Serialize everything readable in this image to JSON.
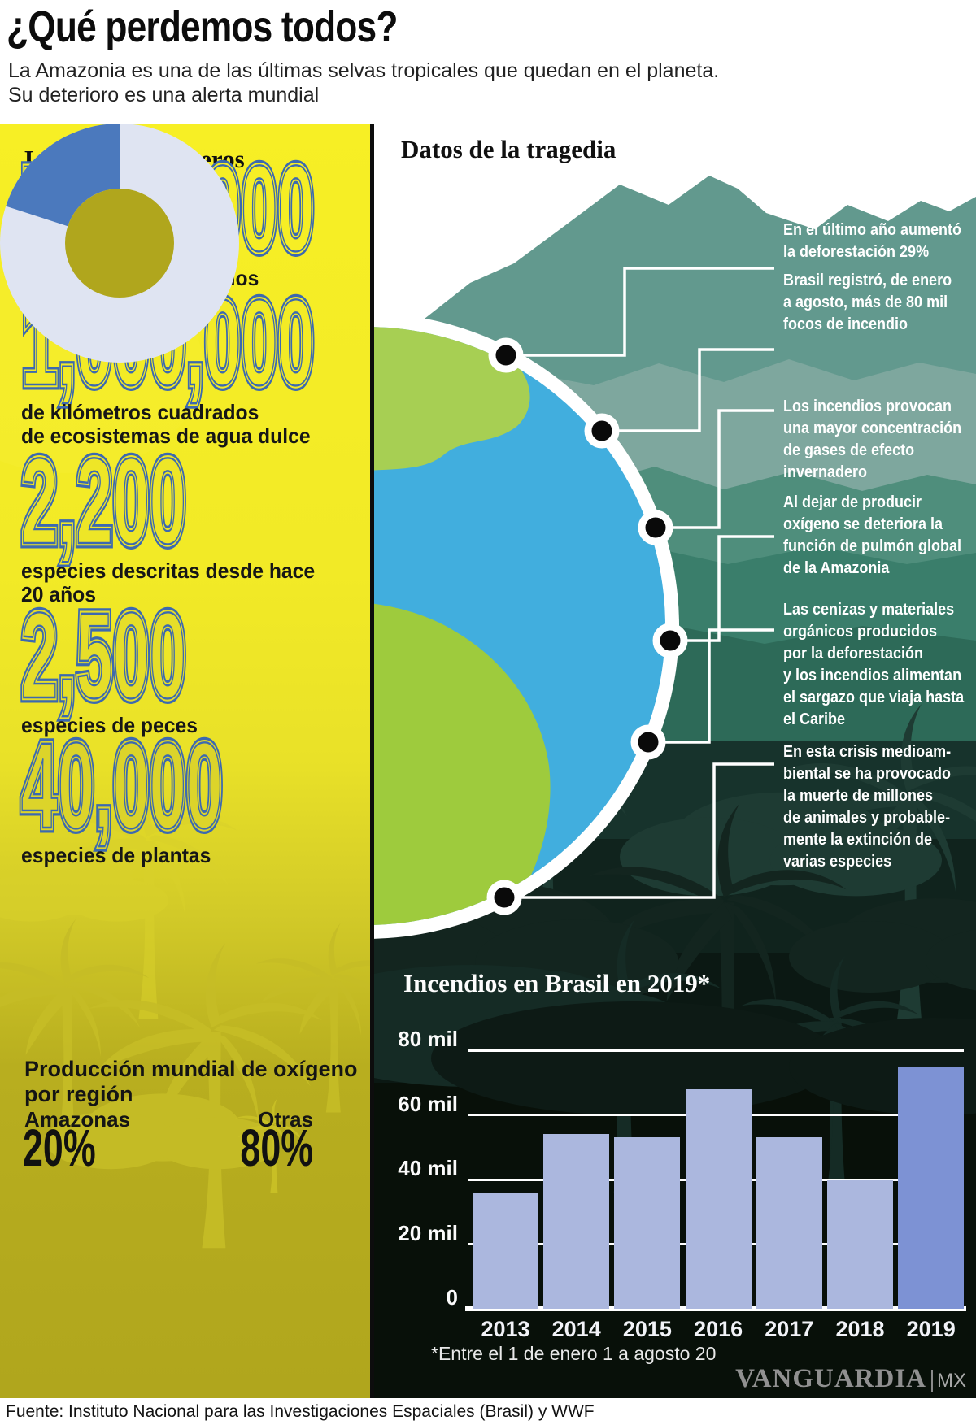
{
  "header": {
    "title": "¿Qué perdemos todos?",
    "subtitle": "La Amazonia es una de las últimas selvas tropicales que quedan en el planeta.\nSu deterioro es una alerta mundial"
  },
  "left_panel": {
    "heading": "La selva en números",
    "stats": [
      {
        "value": "7,000,000",
        "label": "de kilómetros cuadrados"
      },
      {
        "value": "1,000,000",
        "label": "de kilómetros cuadrados\nde ecosistemas de agua dulce"
      },
      {
        "value": "2,200",
        "label": "especies descritas desde hace\n20 años"
      },
      {
        "value": "2,500",
        "label": "especies de peces"
      },
      {
        "value": "40,000",
        "label": "especies de plantas"
      }
    ],
    "oxygen": {
      "title": "Producción mundial de oxígeno\npor región",
      "segments": [
        {
          "label": "Amazonas",
          "value": "20%"
        },
        {
          "label": "Otras",
          "value": "80%"
        }
      ]
    }
  },
  "right_panel": {
    "heading": "Datos de la tragedia",
    "callouts": [
      "En el último año aumentó\nla deforestación 29%",
      "Brasil registró, de enero\na agosto, más de 80 mil\nfocos de incendio",
      "Los incendios provocan\nuna mayor concentración\nde gases de efecto\ninvernadero",
      "Al dejar de producir\noxígeno se deteriora la\nfunción de pulmón global\nde la Amazonia",
      "Las cenizas y materiales\norgánicos producidos\npor la deforestación\ny los incendios alimentan\nel sargazo que viaja hasta\nel Caribe",
      "En esta crisis medioam-\nbiental se ha provocado\nla muerte de millones\nde animales y probable-\nmente la extinción de\nvarias especies"
    ],
    "chart_title": "Incendios en Brasil en 2019*",
    "footnote": "*Entre el 1 de enero 1 a agosto 20"
  },
  "watermark": {
    "name": "VANGUARDIA",
    "suffix": "MX"
  },
  "footer": {
    "source": "Fuente: Instituto Nacional para las Investigaciones Espaciales (Brasil) y WWF"
  },
  "colors": {
    "panel_yellow_top": "#f6ee25",
    "panel_olive_bottom": "#b0a61d",
    "stat_number_blue": "#3c69b0",
    "mountain_teal": "#62998e",
    "jungle_dark": "#0b1813",
    "globe_ocean": "#41aede",
    "globe_land_north": "#a7cf53",
    "globe_land_south": "#9ecb3d",
    "marker_dot": "#0a0a0a",
    "connector_white": "#ffffff"
  },
  "chart_data": [
    {
      "type": "pie",
      "title": "Producción mundial de oxígeno por región",
      "labels": [
        "Amazonas",
        "Otras"
      ],
      "values": [
        20,
        80
      ],
      "unit": "%",
      "colors": [
        "#4b79bd",
        "#dfe4f2"
      ],
      "hole_color": "#b0a61d",
      "start": "top",
      "direction": "counterclockwise"
    },
    {
      "type": "bar",
      "title": "Incendios en Brasil en 2019*",
      "categories": [
        "2013",
        "2014",
        "2015",
        "2016",
        "2017",
        "2018",
        "2019"
      ],
      "values": [
        36000,
        54000,
        53000,
        68000,
        53000,
        40000,
        75000
      ],
      "unit": "focos de incendio",
      "ylim": [
        0,
        80000
      ],
      "yticks": [
        {
          "label": "80 mil",
          "value": 80000
        },
        {
          "label": "60 mil",
          "value": 60000
        },
        {
          "label": "40 mil",
          "value": 40000
        },
        {
          "label": "20 mil",
          "value": 20000
        },
        {
          "label": "0",
          "value": 0
        }
      ],
      "bar_color": "#abb7de",
      "highlight_color": "#7d92d4",
      "highlight_index": 6,
      "footnote": "*Entre el 1 de enero 1 a agosto 20",
      "grid": true,
      "legend": "none"
    }
  ]
}
